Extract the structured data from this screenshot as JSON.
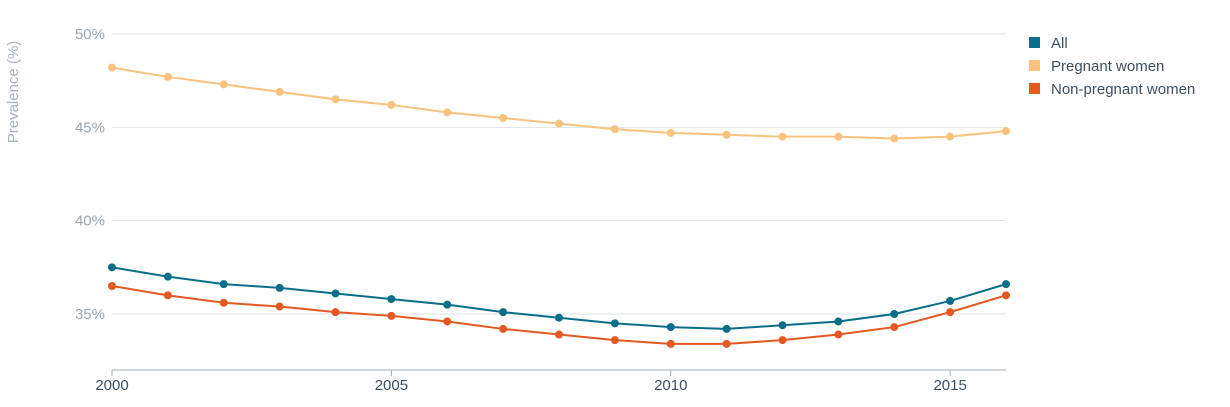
{
  "chart_data": {
    "type": "line",
    "title": "",
    "xlabel": "",
    "ylabel": "Prevalence (%)",
    "x": [
      2000,
      2001,
      2002,
      2003,
      2004,
      2005,
      2006,
      2007,
      2008,
      2009,
      2010,
      2011,
      2012,
      2013,
      2014,
      2015,
      2016
    ],
    "xticks": [
      2000,
      2005,
      2010,
      2015
    ],
    "xtick_labels": [
      "2000",
      "2005",
      "2010",
      "2015"
    ],
    "yticks": [
      35,
      40,
      45,
      50
    ],
    "ytick_labels": [
      "35%",
      "40%",
      "45%",
      "50%"
    ],
    "xlim": [
      2000,
      2016
    ],
    "ylim": [
      32,
      50
    ],
    "grid": true,
    "legend_position": "top-right",
    "series": [
      {
        "name": "All",
        "color": "#0a6e8a",
        "values": [
          37.5,
          37.0,
          36.6,
          36.4,
          36.1,
          35.8,
          35.5,
          35.1,
          34.8,
          34.5,
          34.3,
          34.2,
          34.4,
          34.6,
          35.0,
          35.7,
          36.6
        ]
      },
      {
        "name": "Pregnant women",
        "color": "#f9c27e",
        "values": [
          48.2,
          47.7,
          47.3,
          46.9,
          46.5,
          46.2,
          45.8,
          45.5,
          45.2,
          44.9,
          44.7,
          44.6,
          44.5,
          44.5,
          44.4,
          44.5,
          44.8
        ]
      },
      {
        "name": "Non-pregnant women",
        "color": "#e25a22",
        "values": [
          36.5,
          36.0,
          35.6,
          35.4,
          35.1,
          34.9,
          34.6,
          34.2,
          33.9,
          33.6,
          33.4,
          33.4,
          33.6,
          33.9,
          34.3,
          35.1,
          36.0
        ]
      }
    ]
  }
}
